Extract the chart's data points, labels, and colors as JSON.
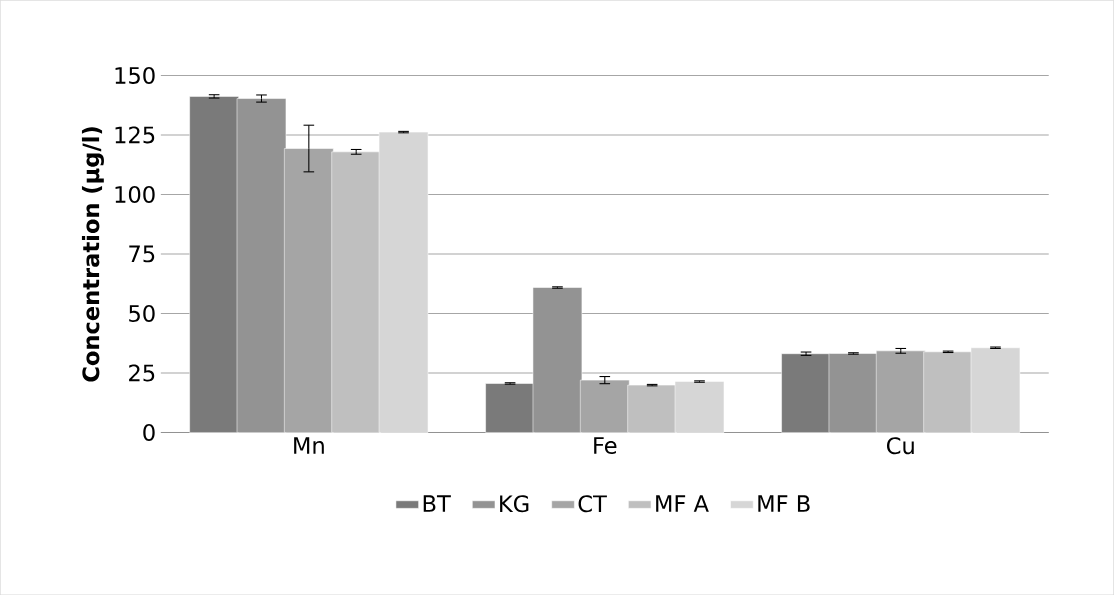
{
  "chart_data": {
    "type": "bar",
    "ylabel": "Concentration (µg/l)",
    "categories": [
      "Mn",
      "Fe",
      "Cu"
    ],
    "series": [
      {
        "name": "BT",
        "color": "#7a7a7a",
        "values": [
          141.2,
          20.6,
          33.1
        ],
        "errors": [
          0.7,
          0.3,
          0.7
        ]
      },
      {
        "name": "KG",
        "color": "#939393",
        "values": [
          140.3,
          60.9,
          33.2
        ],
        "errors": [
          1.5,
          0.3,
          0.3
        ]
      },
      {
        "name": "CT",
        "color": "#a5a5a5",
        "values": [
          119.3,
          22,
          34.3
        ],
        "errors": [
          9.8,
          1.5,
          1
        ]
      },
      {
        "name": "MF A",
        "color": "#bfbfbf",
        "values": [
          117.9,
          19.9,
          33.9
        ],
        "errors": [
          1,
          0.3,
          0.3
        ]
      },
      {
        "name": "MF B",
        "color": "#d6d6d6",
        "values": [
          126.2,
          21.4,
          35.6
        ],
        "errors": [
          0.3,
          0.3,
          0.3
        ]
      }
    ],
    "ylim": [
      0,
      150
    ],
    "yticks": [
      0,
      25,
      50,
      75,
      100,
      125,
      150
    ],
    "grid": "y",
    "legend": "bottom"
  }
}
